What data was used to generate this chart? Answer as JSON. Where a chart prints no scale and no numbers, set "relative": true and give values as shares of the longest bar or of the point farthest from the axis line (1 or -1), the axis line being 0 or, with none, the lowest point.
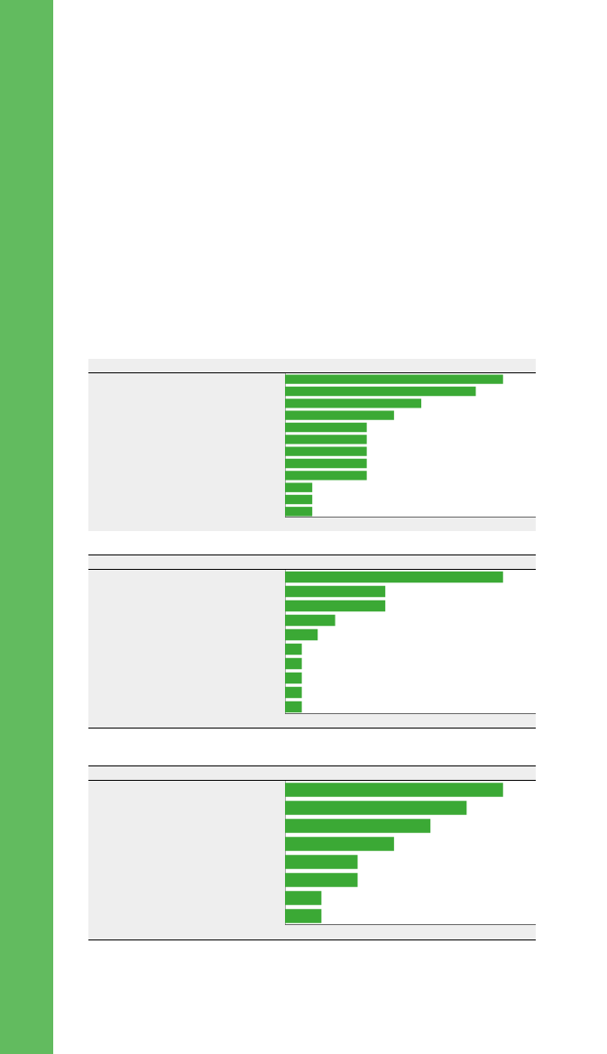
{
  "chart_data": [
    {
      "type": "bar",
      "orientation": "horizontal",
      "relative": true,
      "color": "#3ba935",
      "categories": [
        null,
        null,
        null,
        null,
        null,
        null,
        null,
        null,
        null,
        null,
        null,
        null
      ],
      "values": [
        1,
        0.875,
        0.625,
        0.5,
        0.375,
        0.375,
        0.375,
        0.375,
        0.375,
        0.125,
        0.125,
        0.125
      ]
    },
    {
      "type": "bar",
      "orientation": "horizontal",
      "relative": true,
      "color": "#3ba935",
      "categories": [
        null,
        null,
        null,
        null,
        null,
        null,
        null,
        null,
        null,
        null
      ],
      "values": [
        1,
        0.46,
        0.46,
        0.23,
        0.15,
        0.077,
        0.077,
        0.077,
        0.077,
        0.077
      ]
    },
    {
      "type": "bar",
      "orientation": "horizontal",
      "relative": true,
      "color": "#3ba935",
      "categories": [
        null,
        null,
        null,
        null,
        null,
        null,
        null,
        null
      ],
      "values": [
        1,
        0.833,
        0.667,
        0.5,
        0.333,
        0.333,
        0.167,
        0.167
      ]
    }
  ]
}
